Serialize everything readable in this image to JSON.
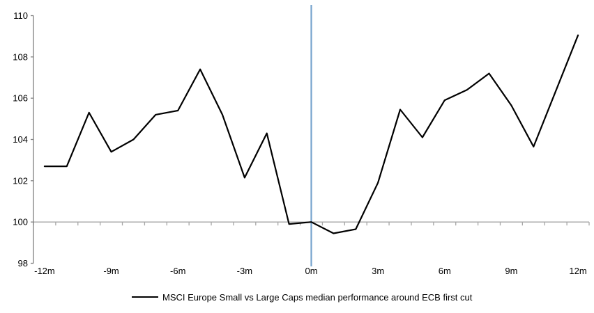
{
  "chart_data": {
    "type": "line",
    "title": "",
    "x": [
      -12,
      -11,
      -10,
      -9,
      -8,
      -7,
      -6,
      -5,
      -4,
      -3,
      -2,
      -1,
      0,
      1,
      2,
      3,
      4,
      5,
      6,
      7,
      8,
      9,
      10,
      11,
      12
    ],
    "series": [
      {
        "name": "MSCI Europe Small vs Large Caps median performance around ECB first cut",
        "color": "#000000",
        "values": [
          102.7,
          102.7,
          105.3,
          103.4,
          104.0,
          105.2,
          105.4,
          107.4,
          105.2,
          102.15,
          104.3,
          99.9,
          100.0,
          99.45,
          99.65,
          101.9,
          105.45,
          104.1,
          105.9,
          106.4,
          107.2,
          105.65,
          103.65,
          106.35,
          109.05
        ]
      }
    ],
    "ylim": [
      98,
      110
    ],
    "y_tick_values": [
      110,
      108,
      106,
      104,
      102,
      100,
      98
    ],
    "y_tick_labels": [
      "110",
      "108",
      "106",
      "104",
      "102",
      "100",
      "98"
    ],
    "x_tick_positions": [
      -12,
      -9,
      -6,
      -3,
      0,
      3,
      6,
      9,
      12
    ],
    "x_tick_labels": [
      "-12m",
      "-9m",
      "-6m",
      "-3m",
      "0m",
      "3m",
      "6m",
      "9m",
      "12m"
    ],
    "axis_crosses_at": 100,
    "event_line_x": 0,
    "grid": false,
    "legend_position": "bottom",
    "colors": {
      "series": "#000000",
      "event_line": "#76A3CD",
      "x_axis": "#A6A6A6",
      "y_axis": "#808080",
      "text": "#000000"
    }
  }
}
